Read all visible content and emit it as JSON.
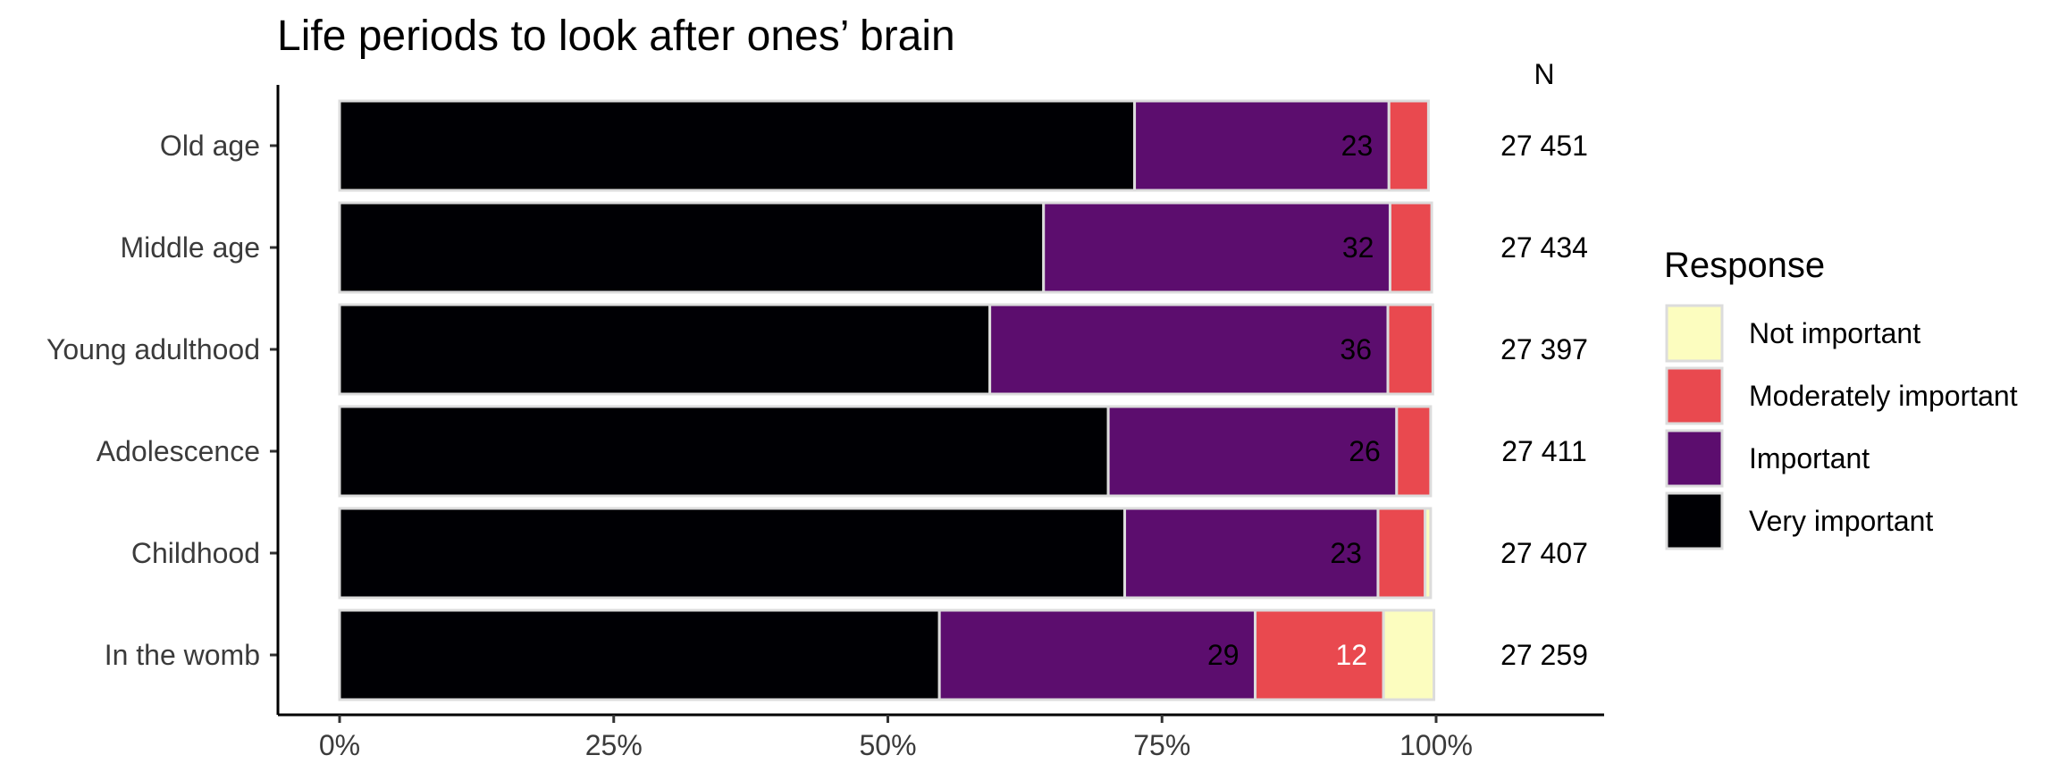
{
  "chart_data": {
    "type": "bar",
    "orientation": "horizontal",
    "stacked": true,
    "title": "Life periods to look after ones’ brain",
    "xlabel": "",
    "ylabel": "",
    "xlim": [
      0,
      1.13
    ],
    "x_ticks": [
      0,
      0.25,
      0.5,
      0.75,
      1.0
    ],
    "x_tick_labels": [
      "0%",
      "25%",
      "50%",
      "75%",
      "100%"
    ],
    "n_header": "N",
    "categories": [
      "Old age",
      "Middle age",
      "Young adulthood",
      "Adolescence",
      "Childhood",
      "In the womb"
    ],
    "n_values": [
      "27 451",
      "27 434",
      "27 397",
      "27 411",
      "27 407",
      "27 259"
    ],
    "series": [
      {
        "name": "Very important",
        "color": "#000004",
        "values": [
          0.725,
          0.642,
          0.593,
          0.701,
          0.716,
          0.547
        ]
      },
      {
        "name": "Important",
        "color": "#5c0d6e",
        "values": [
          0.232,
          0.316,
          0.363,
          0.263,
          0.231,
          0.288
        ]
      },
      {
        "name": "Moderately important",
        "color": "#e9494f",
        "values": [
          0.036,
          0.038,
          0.041,
          0.031,
          0.043,
          0.117
        ]
      },
      {
        "name": "Not important",
        "color": "#fcfdbf",
        "values": [
          0.0,
          0.0,
          0.0,
          0.0,
          0.005,
          0.046
        ]
      }
    ],
    "data_labels": [
      {
        "category": "Old age",
        "series": "Important",
        "text": "23",
        "color": "#000000"
      },
      {
        "category": "Middle age",
        "series": "Important",
        "text": "32",
        "color": "#000000"
      },
      {
        "category": "Young adulthood",
        "series": "Important",
        "text": "36",
        "color": "#000000"
      },
      {
        "category": "Adolescence",
        "series": "Important",
        "text": "26",
        "color": "#000000"
      },
      {
        "category": "Childhood",
        "series": "Important",
        "text": "23",
        "color": "#000000"
      },
      {
        "category": "In the womb",
        "series": "Important",
        "text": "29",
        "color": "#000000"
      },
      {
        "category": "In the womb",
        "series": "Moderately important",
        "text": "12",
        "color": "#ffffff"
      }
    ],
    "legend": {
      "title": "Response",
      "position": "right",
      "items": [
        {
          "label": "Not important",
          "color": "#fcfdbf"
        },
        {
          "label": "Moderately important",
          "color": "#e9494f"
        },
        {
          "label": "Important",
          "color": "#5c0d6e"
        },
        {
          "label": "Very important",
          "color": "#000004"
        }
      ]
    },
    "grid": false,
    "bar_outline_color": "#dcdcdc"
  }
}
